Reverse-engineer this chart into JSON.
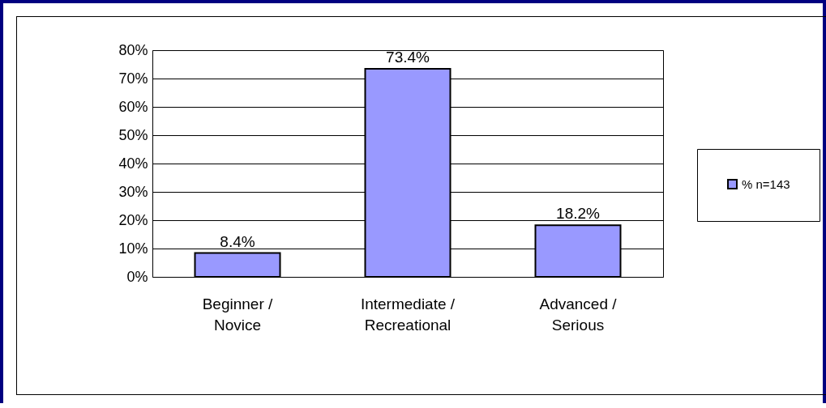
{
  "chart_data": {
    "type": "bar",
    "categories": [
      "Beginner / Novice",
      "Intermediate / Recreational",
      "Advanced / Serious"
    ],
    "series": [
      {
        "name": "% n=143",
        "color": "#9999ff",
        "values": [
          8.4,
          73.4,
          18.2
        ],
        "value_labels": [
          "8.4%",
          "73.4%",
          "18.2%"
        ]
      }
    ],
    "ylim": [
      0,
      80
    ],
    "yticks": [
      {
        "value": 0,
        "label": "0%"
      },
      {
        "value": 10,
        "label": "10%"
      },
      {
        "value": 20,
        "label": "20%"
      },
      {
        "value": 30,
        "label": "30%"
      },
      {
        "value": 40,
        "label": "40%"
      },
      {
        "value": 50,
        "label": "50%"
      },
      {
        "value": 60,
        "label": "60%"
      },
      {
        "value": 70,
        "label": "70%"
      },
      {
        "value": 80,
        "label": "80%"
      }
    ],
    "grid": "y",
    "legend": "right"
  }
}
